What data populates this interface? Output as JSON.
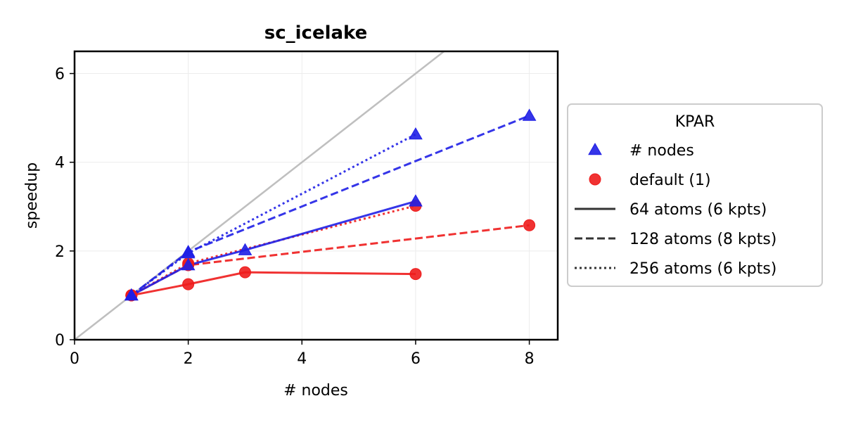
{
  "chart_data": {
    "type": "line",
    "title": "sc_icelake",
    "xlabel": "# nodes",
    "ylabel": "speedup",
    "xlim": [
      0,
      8.5
    ],
    "ylim": [
      0,
      6.5
    ],
    "xticks": [
      "0",
      "2",
      "4",
      "6",
      "8"
    ],
    "yticks": [
      "0",
      "2",
      "4",
      "6"
    ],
    "grid": true,
    "ideal_line": {
      "x": [
        0,
        6.5
      ],
      "y": [
        0,
        6.5
      ],
      "color": "#bfbfbf"
    },
    "series": [
      {
        "kpar": "# nodes",
        "atoms": "64 atoms (6 kpts)",
        "color": "#1f1fe6",
        "dash": "solid",
        "marker": "triangle",
        "x": [
          1,
          2,
          3,
          6
        ],
        "y": [
          1.0,
          1.68,
          2.02,
          3.12
        ]
      },
      {
        "kpar": "# nodes",
        "atoms": "128 atoms (8 kpts)",
        "color": "#1f1fe6",
        "dash": "dashed",
        "marker": "triangle",
        "x": [
          1,
          2,
          8
        ],
        "y": [
          1.0,
          1.98,
          5.05
        ]
      },
      {
        "kpar": "# nodes",
        "atoms": "256 atoms (6 kpts)",
        "color": "#1f1fe6",
        "dash": "dotted",
        "marker": "triangle",
        "x": [
          1,
          2,
          6
        ],
        "y": [
          1.0,
          1.95,
          4.63
        ]
      },
      {
        "kpar": "default (1)",
        "atoms": "64 atoms (6 kpts)",
        "color": "#ee1c1c",
        "dash": "solid",
        "marker": "circle",
        "x": [
          1,
          2,
          3,
          6
        ],
        "y": [
          1.0,
          1.25,
          1.52,
          1.48
        ]
      },
      {
        "kpar": "default (1)",
        "atoms": "128 atoms (8 kpts)",
        "color": "#ee1c1c",
        "dash": "dashed",
        "marker": "circle",
        "x": [
          1,
          2,
          8
        ],
        "y": [
          1.0,
          1.68,
          2.58
        ]
      },
      {
        "kpar": "default (1)",
        "atoms": "256 atoms (6 kpts)",
        "color": "#ee1c1c",
        "dash": "dotted",
        "marker": "circle",
        "x": [
          1,
          2,
          6
        ],
        "y": [
          1.0,
          1.72,
          3.02
        ]
      }
    ],
    "legend": {
      "title": "KPAR",
      "placement": "right-outside",
      "entries": [
        {
          "label": "# nodes",
          "kind": "marker",
          "marker": "triangle",
          "color": "#1f1fe6"
        },
        {
          "label": "default (1)",
          "kind": "marker",
          "marker": "circle",
          "color": "#ee1c1c"
        },
        {
          "label": "64 atoms (6 kpts)",
          "kind": "line",
          "dash": "solid",
          "color": "#333333"
        },
        {
          "label": "128 atoms (8 kpts)",
          "kind": "line",
          "dash": "dashed",
          "color": "#333333"
        },
        {
          "label": "256 atoms (6 kpts)",
          "kind": "line",
          "dash": "dotted",
          "color": "#333333"
        }
      ]
    }
  }
}
